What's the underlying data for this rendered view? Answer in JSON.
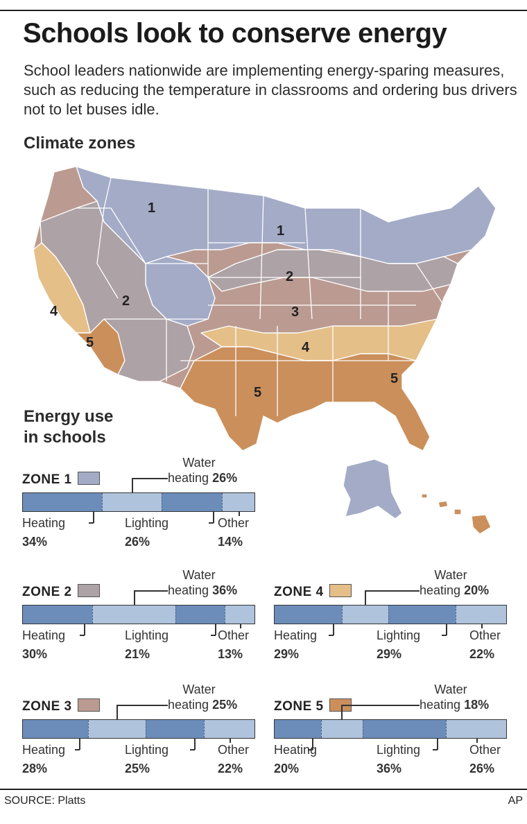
{
  "title": "Schools look to conserve energy",
  "subtitle": "School leaders nationwide are implementing energy-sparing measures, such as reducing the temperature in classrooms and ordering bus drivers not to let buses idle.",
  "map": {
    "heading": "Climate zones",
    "zone_colors": {
      "1": "#a3abc7",
      "2": "#ada2a6",
      "3": "#bb9b91",
      "4": "#e5bf88",
      "5": "#cb8f5b"
    },
    "labels": [
      "1",
      "1",
      "2",
      "2",
      "3",
      "4",
      "4",
      "5",
      "5",
      "5"
    ]
  },
  "chart_heading_line1": "Energy use",
  "chart_heading_line2": "in schools",
  "chart_data": {
    "type": "bar",
    "stacked": true,
    "segment_order": [
      "Heating",
      "Water heating",
      "Lighting",
      "Other"
    ],
    "zones": [
      {
        "zone": "ZONE 1",
        "swatch": "#a3abc7",
        "heating": 34,
        "water": 26,
        "lighting": 26,
        "other": 14
      },
      {
        "zone": "ZONE 2",
        "swatch": "#ada2a6",
        "heating": 30,
        "water": 36,
        "lighting": 21,
        "other": 13
      },
      {
        "zone": "ZONE 3",
        "swatch": "#bb9b91",
        "heating": 28,
        "water": 25,
        "lighting": 25,
        "other": 22
      },
      {
        "zone": "ZONE 4",
        "swatch": "#e5bf88",
        "heating": 29,
        "water": 20,
        "lighting": 29,
        "other": 22
      },
      {
        "zone": "ZONE 5",
        "swatch": "#cb8f5b",
        "heating": 20,
        "water": 18,
        "lighting": 36,
        "other": 26
      }
    ]
  },
  "labels": {
    "heating": "Heating",
    "water_line1": "Water",
    "water_line2": "heating",
    "lighting": "Lighting",
    "other": "Other"
  },
  "footer": {
    "source": "SOURCE: Platts",
    "credit": "AP"
  }
}
